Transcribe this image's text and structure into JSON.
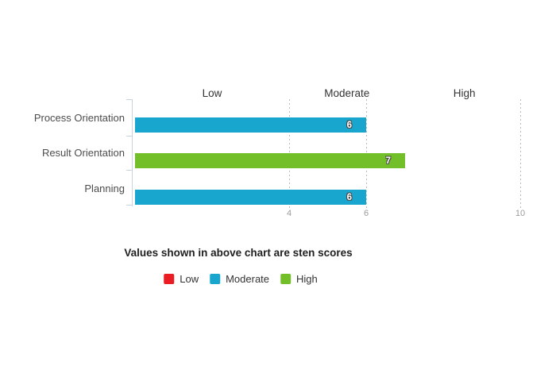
{
  "chart_data": {
    "type": "bar",
    "orientation": "horizontal",
    "categories": [
      "Process Orientation",
      "Result Orientation",
      "Planning"
    ],
    "values": [
      6,
      7,
      6
    ],
    "bar_levels": [
      "Moderate",
      "High",
      "Moderate"
    ],
    "bar_colors": [
      "#18a6ce",
      "#72bf29",
      "#18a6ce"
    ],
    "zone_headers": [
      "Low",
      "Moderate",
      "High"
    ],
    "x_ticks": [
      4,
      6,
      10
    ],
    "xlim": [
      0,
      10
    ],
    "grid": "dashed-vertical-gridlines",
    "legend_position": "bottom-center",
    "caption": "Values shown in above chart are sten scores",
    "legend": [
      {
        "label": "Low",
        "color": "#ea1c24"
      },
      {
        "label": "Moderate",
        "color": "#18a6ce"
      },
      {
        "label": "High",
        "color": "#72bf29"
      }
    ]
  }
}
